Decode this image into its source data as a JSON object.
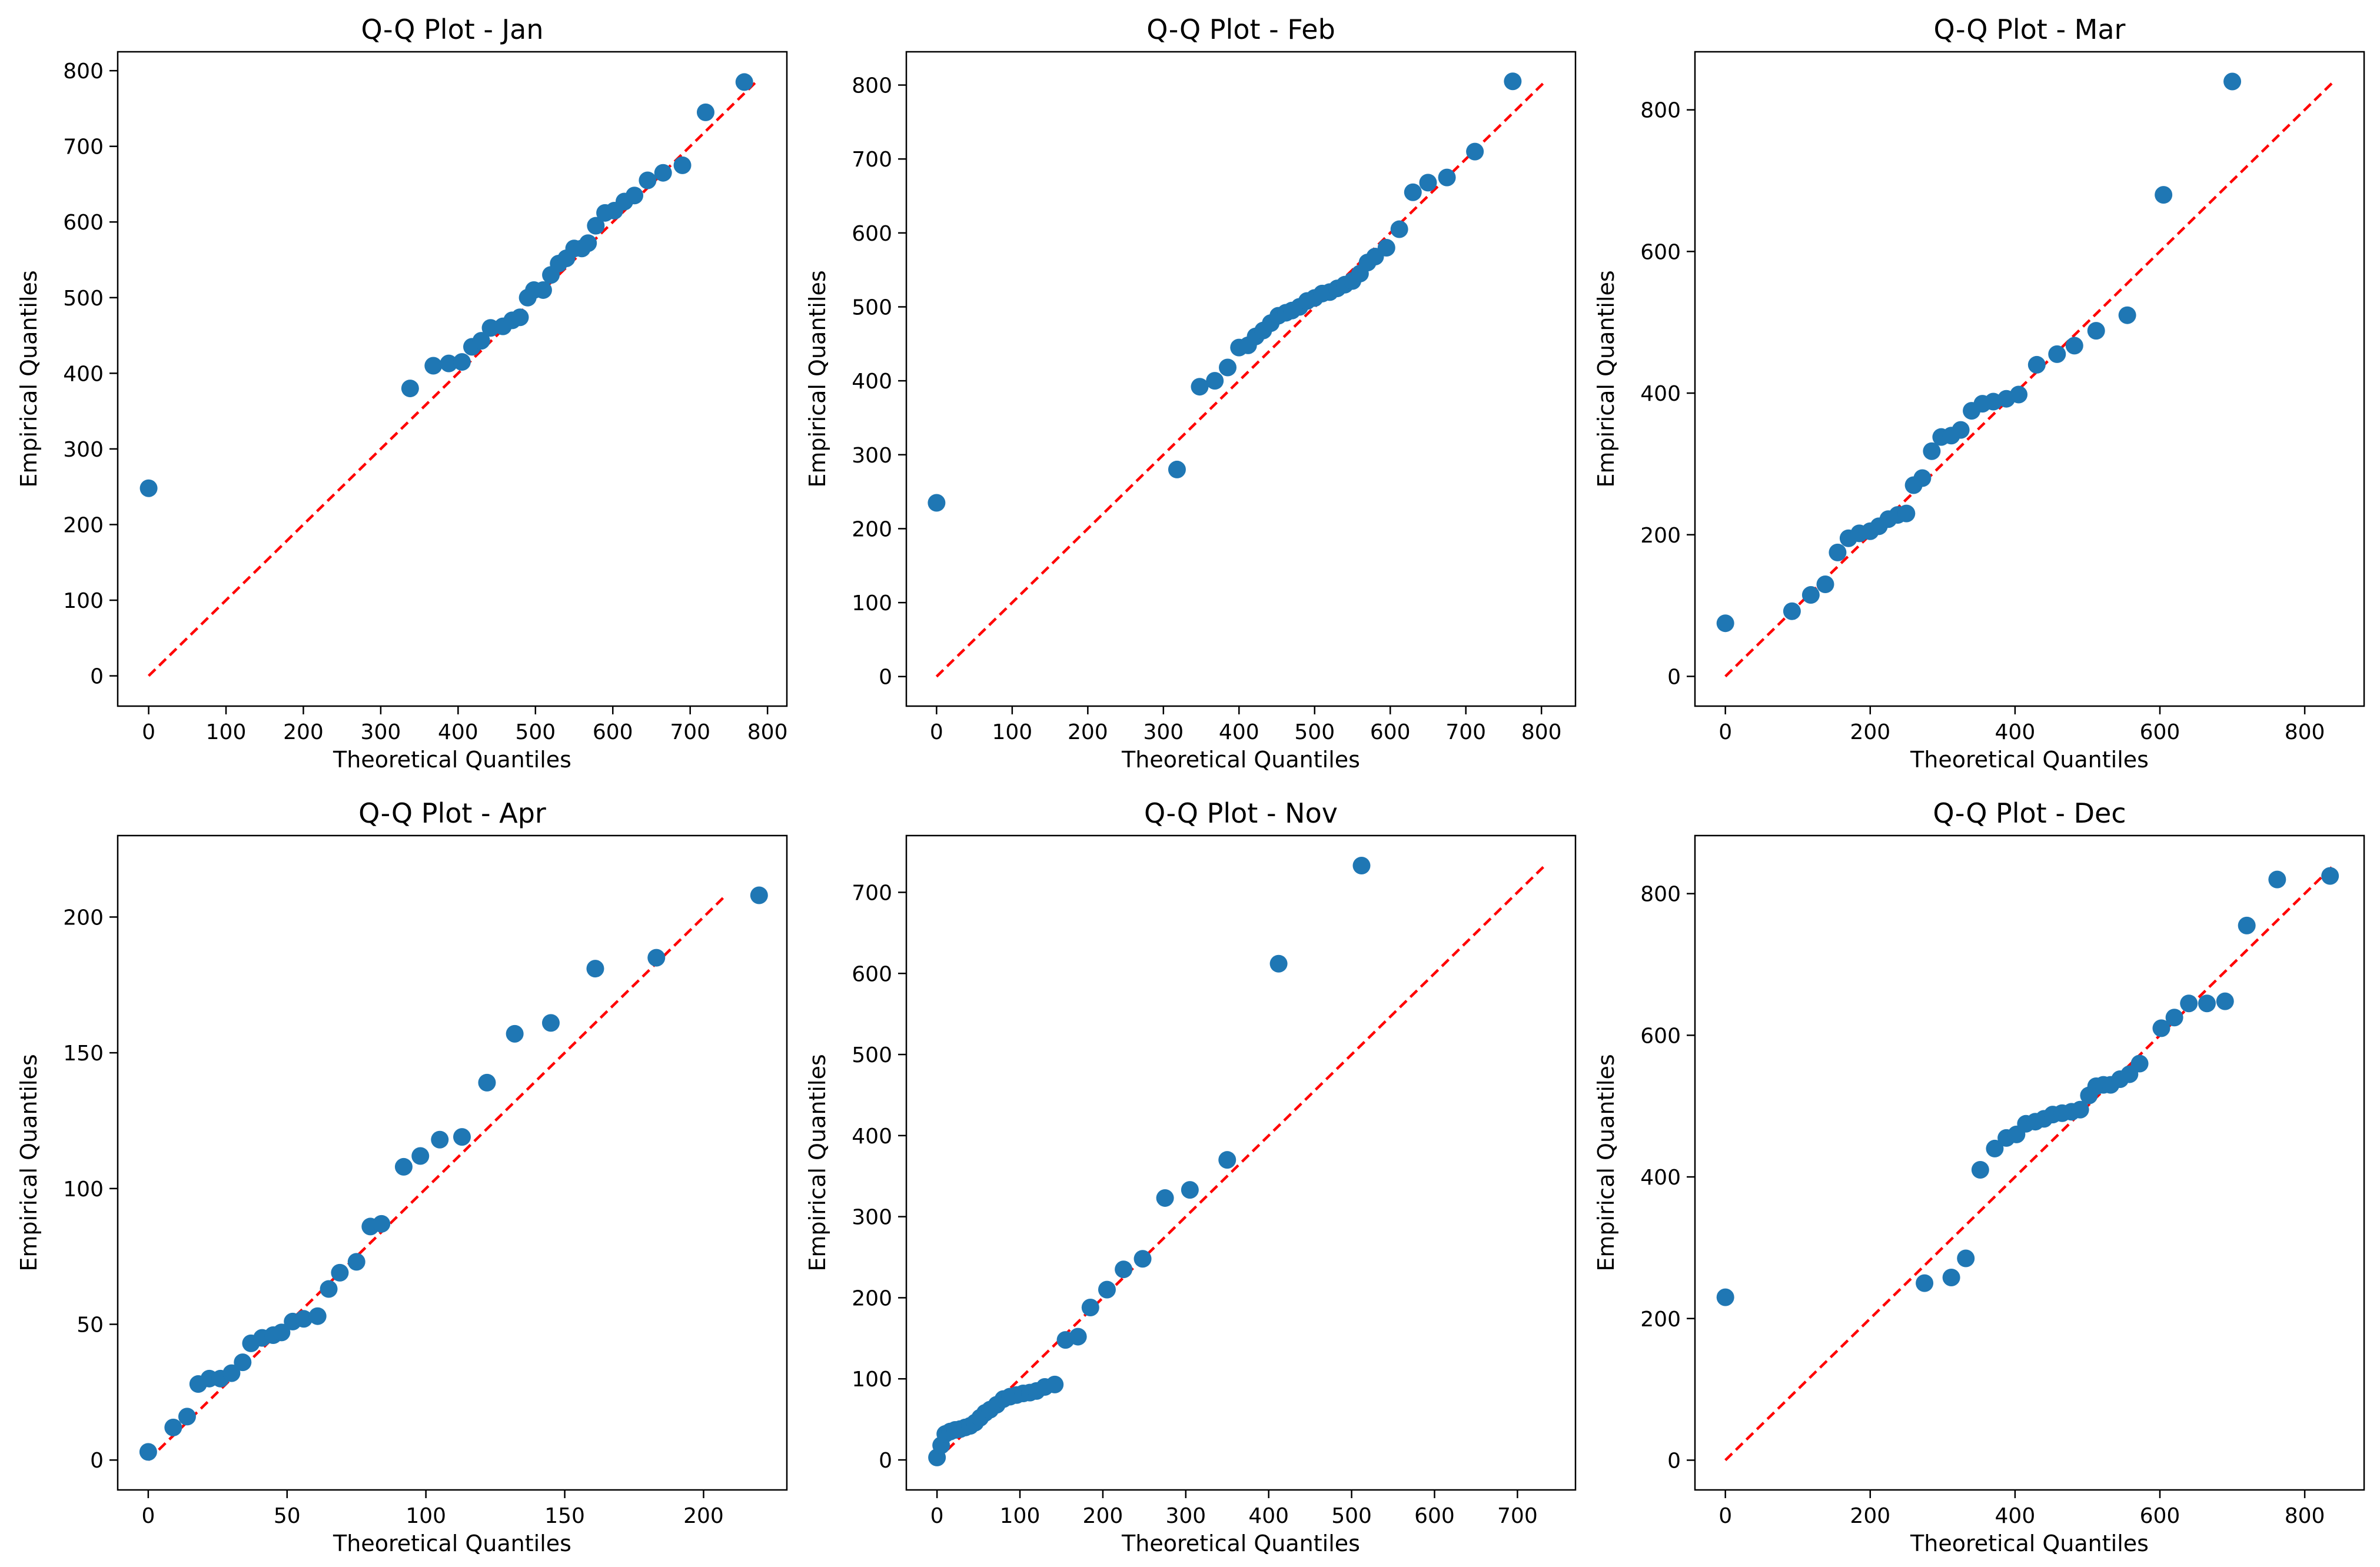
{
  "figure": {
    "point_color": "#1f77b4",
    "ref_line_color": "#ff0000",
    "axes_color": "#000000",
    "background": "#ffffff"
  },
  "chart_data": [
    {
      "type": "scatter",
      "title": "Q-Q Plot - Jan",
      "xlabel": "Theoretical Quantiles",
      "ylabel": "Empirical Quantiles",
      "xlim": [
        -40,
        825
      ],
      "ylim": [
        -40,
        825
      ],
      "xticks": [
        0,
        100,
        200,
        300,
        400,
        500,
        600,
        700,
        800
      ],
      "yticks": [
        0,
        100,
        200,
        300,
        400,
        500,
        600,
        700,
        800
      ],
      "reference_line": [
        [
          0,
          0
        ],
        [
          785,
          785
        ]
      ],
      "points": [
        [
          0,
          248
        ],
        [
          338,
          380
        ],
        [
          368,
          410
        ],
        [
          388,
          413
        ],
        [
          405,
          415
        ],
        [
          418,
          435
        ],
        [
          430,
          443
        ],
        [
          442,
          460
        ],
        [
          458,
          462
        ],
        [
          470,
          470
        ],
        [
          480,
          474
        ],
        [
          490,
          500
        ],
        [
          498,
          510
        ],
        [
          510,
          510
        ],
        [
          520,
          530
        ],
        [
          530,
          545
        ],
        [
          540,
          552
        ],
        [
          550,
          565
        ],
        [
          560,
          565
        ],
        [
          568,
          572
        ],
        [
          578,
          595
        ],
        [
          590,
          612
        ],
        [
          602,
          615
        ],
        [
          615,
          627
        ],
        [
          628,
          635
        ],
        [
          645,
          655
        ],
        [
          665,
          665
        ],
        [
          690,
          675
        ],
        [
          720,
          745
        ],
        [
          770,
          785
        ]
      ]
    },
    {
      "type": "scatter",
      "title": "Q-Q Plot - Feb",
      "xlabel": "Theoretical Quantiles",
      "ylabel": "Empirical Quantiles",
      "xlim": [
        -40,
        845
      ],
      "ylim": [
        -40,
        845
      ],
      "xticks": [
        0,
        100,
        200,
        300,
        400,
        500,
        600,
        700,
        800
      ],
      "yticks": [
        0,
        100,
        200,
        300,
        400,
        500,
        600,
        700,
        800
      ],
      "reference_line": [
        [
          0,
          0
        ],
        [
          805,
          805
        ]
      ],
      "points": [
        [
          0,
          235
        ],
        [
          318,
          280
        ],
        [
          348,
          392
        ],
        [
          368,
          400
        ],
        [
          385,
          418
        ],
        [
          400,
          445
        ],
        [
          412,
          448
        ],
        [
          422,
          460
        ],
        [
          432,
          468
        ],
        [
          442,
          478
        ],
        [
          452,
          488
        ],
        [
          462,
          492
        ],
        [
          470,
          495
        ],
        [
          480,
          500
        ],
        [
          490,
          508
        ],
        [
          500,
          512
        ],
        [
          510,
          518
        ],
        [
          520,
          520
        ],
        [
          530,
          525
        ],
        [
          540,
          530
        ],
        [
          550,
          535
        ],
        [
          560,
          545
        ],
        [
          570,
          560
        ],
        [
          580,
          568
        ],
        [
          595,
          580
        ],
        [
          612,
          605
        ],
        [
          630,
          655
        ],
        [
          650,
          668
        ],
        [
          675,
          675
        ],
        [
          712,
          710
        ],
        [
          762,
          805
        ]
      ]
    },
    {
      "type": "scatter",
      "title": "Q-Q Plot - Mar",
      "xlabel": "Theoretical Quantiles",
      "ylabel": "Empirical Quantiles",
      "xlim": [
        -42,
        882
      ],
      "ylim": [
        -42,
        882
      ],
      "xticks": [
        0,
        200,
        400,
        600,
        800
      ],
      "yticks": [
        0,
        200,
        400,
        600,
        800
      ],
      "reference_line": [
        [
          0,
          0
        ],
        [
          840,
          840
        ]
      ],
      "points": [
        [
          0,
          75
        ],
        [
          92,
          92
        ],
        [
          118,
          115
        ],
        [
          138,
          130
        ],
        [
          155,
          175
        ],
        [
          170,
          195
        ],
        [
          185,
          202
        ],
        [
          200,
          205
        ],
        [
          212,
          212
        ],
        [
          225,
          222
        ],
        [
          238,
          228
        ],
        [
          250,
          230
        ],
        [
          260,
          270
        ],
        [
          272,
          280
        ],
        [
          285,
          318
        ],
        [
          298,
          338
        ],
        [
          312,
          340
        ],
        [
          325,
          348
        ],
        [
          340,
          375
        ],
        [
          355,
          385
        ],
        [
          370,
          388
        ],
        [
          388,
          392
        ],
        [
          405,
          398
        ],
        [
          430,
          440
        ],
        [
          458,
          455
        ],
        [
          482,
          467
        ],
        [
          512,
          488
        ],
        [
          555,
          510
        ],
        [
          605,
          680
        ],
        [
          700,
          840
        ]
      ]
    },
    {
      "type": "scatter",
      "title": "Q-Q Plot - Apr",
      "xlabel": "Theoretical Quantiles",
      "ylabel": "Empirical Quantiles",
      "xlim": [
        -11,
        230
      ],
      "ylim": [
        -11,
        230
      ],
      "xticks": [
        0,
        50,
        100,
        150,
        200
      ],
      "yticks": [
        0,
        50,
        100,
        150,
        200
      ],
      "reference_line": [
        [
          0,
          0
        ],
        [
          207,
          207
        ]
      ],
      "points": [
        [
          0,
          3
        ],
        [
          9,
          12
        ],
        [
          14,
          16
        ],
        [
          18,
          28
        ],
        [
          22,
          30
        ],
        [
          26,
          30
        ],
        [
          30,
          32
        ],
        [
          34,
          36
        ],
        [
          37,
          43
        ],
        [
          41,
          45
        ],
        [
          45,
          46
        ],
        [
          48,
          47
        ],
        [
          52,
          51
        ],
        [
          56,
          52
        ],
        [
          61,
          53
        ],
        [
          65,
          63
        ],
        [
          69,
          69
        ],
        [
          75,
          73
        ],
        [
          80,
          86
        ],
        [
          84,
          87
        ],
        [
          92,
          108
        ],
        [
          98,
          112
        ],
        [
          105,
          118
        ],
        [
          113,
          119
        ],
        [
          122,
          139
        ],
        [
          132,
          157
        ],
        [
          145,
          161
        ],
        [
          161,
          181
        ],
        [
          183,
          185
        ],
        [
          220,
          208
        ]
      ]
    },
    {
      "type": "scatter",
      "title": "Q-Q Plot - Nov",
      "xlabel": "Theoretical Quantiles",
      "ylabel": "Empirical Quantiles",
      "xlim": [
        -37,
        770
      ],
      "ylim": [
        -37,
        770
      ],
      "xticks": [
        0,
        100,
        200,
        300,
        400,
        500,
        600,
        700
      ],
      "yticks": [
        0,
        100,
        200,
        300,
        400,
        500,
        600,
        700
      ],
      "reference_line": [
        [
          0,
          0
        ],
        [
          735,
          735
        ]
      ],
      "points": [
        [
          0,
          3
        ],
        [
          5,
          18
        ],
        [
          10,
          32
        ],
        [
          16,
          35
        ],
        [
          22,
          37
        ],
        [
          28,
          38
        ],
        [
          34,
          40
        ],
        [
          40,
          42
        ],
        [
          46,
          46
        ],
        [
          52,
          52
        ],
        [
          58,
          58
        ],
        [
          64,
          62
        ],
        [
          72,
          68
        ],
        [
          80,
          75
        ],
        [
          88,
          78
        ],
        [
          96,
          80
        ],
        [
          104,
          82
        ],
        [
          112,
          83
        ],
        [
          120,
          85
        ],
        [
          130,
          90
        ],
        [
          142,
          93
        ],
        [
          155,
          148
        ],
        [
          170,
          152
        ],
        [
          185,
          188
        ],
        [
          205,
          210
        ],
        [
          225,
          235
        ],
        [
          248,
          248
        ],
        [
          275,
          323
        ],
        [
          305,
          333
        ],
        [
          350,
          370
        ],
        [
          412,
          612
        ],
        [
          512,
          733
        ]
      ]
    },
    {
      "type": "scatter",
      "title": "Q-Q Plot - Dec",
      "xlabel": "Theoretical Quantiles",
      "ylabel": "Empirical Quantiles",
      "xlim": [
        -42,
        882
      ],
      "ylim": [
        -42,
        882
      ],
      "xticks": [
        0,
        200,
        400,
        600,
        800
      ],
      "yticks": [
        0,
        200,
        400,
        600,
        800
      ],
      "reference_line": [
        [
          0,
          0
        ],
        [
          840,
          840
        ]
      ],
      "points": [
        [
          0,
          230
        ],
        [
          275,
          250
        ],
        [
          312,
          258
        ],
        [
          332,
          285
        ],
        [
          352,
          410
        ],
        [
          372,
          440
        ],
        [
          388,
          455
        ],
        [
          402,
          460
        ],
        [
          415,
          475
        ],
        [
          428,
          478
        ],
        [
          440,
          482
        ],
        [
          452,
          488
        ],
        [
          465,
          490
        ],
        [
          478,
          492
        ],
        [
          490,
          495
        ],
        [
          502,
          515
        ],
        [
          512,
          528
        ],
        [
          522,
          530
        ],
        [
          532,
          530
        ],
        [
          545,
          538
        ],
        [
          558,
          545
        ],
        [
          572,
          560
        ],
        [
          602,
          610
        ],
        [
          620,
          625
        ],
        [
          640,
          645
        ],
        [
          665,
          645
        ],
        [
          690,
          648
        ],
        [
          720,
          755
        ],
        [
          762,
          820
        ],
        [
          835,
          825
        ]
      ]
    }
  ]
}
